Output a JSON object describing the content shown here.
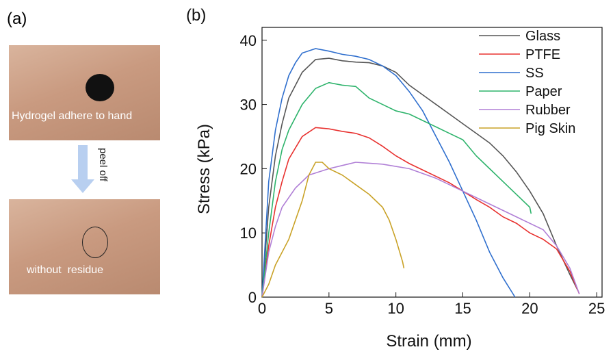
{
  "panel_a": {
    "label": "(a)",
    "top_caption": "Hydrogel adhere to hand",
    "arrow_label": "peel off",
    "bottom_caption": "without  residue"
  },
  "chart_data": {
    "type": "line",
    "panel_label": "(b)",
    "x_label": "Strain (mm)",
    "y_label": "Stress (kPa)",
    "xlim": [
      0,
      25.4
    ],
    "ylim": [
      0,
      42
    ],
    "xticks": [
      0,
      5,
      10,
      15,
      20,
      25
    ],
    "yticks": [
      0,
      10,
      20,
      30,
      40
    ],
    "legend": "top-right",
    "series": [
      {
        "name": "Glass",
        "color": "#555555",
        "x": [
          0,
          0.5,
          1,
          1.5,
          2,
          3,
          4,
          5,
          6,
          7,
          8,
          9,
          10,
          11,
          12,
          13,
          14,
          15,
          16,
          17,
          18,
          19,
          20,
          21,
          22,
          23,
          23.6
        ],
        "values": [
          0,
          14,
          22,
          27,
          31,
          35,
          37,
          37.2,
          36.8,
          36.6,
          36.5,
          36,
          35,
          33,
          31.5,
          30,
          28.5,
          27,
          25.5,
          24,
          22,
          19.5,
          16.5,
          13,
          8,
          3.5,
          1
        ]
      },
      {
        "name": "PTFE",
        "color": "#e8312f",
        "x": [
          0,
          0.5,
          1,
          1.5,
          2,
          3,
          4,
          5,
          6,
          7,
          8,
          9,
          10,
          11,
          12,
          13,
          14,
          15,
          16,
          17,
          18,
          19,
          20,
          21,
          22,
          23,
          23.7
        ],
        "values": [
          0,
          8,
          14,
          18,
          21.5,
          25,
          26.4,
          26.2,
          25.8,
          25.5,
          24.8,
          23.5,
          22,
          20.8,
          19.8,
          18.8,
          17.8,
          16.5,
          15.2,
          14,
          12.5,
          11.5,
          10,
          9,
          7.5,
          4,
          0.5
        ]
      },
      {
        "name": "SS",
        "color": "#2f6fce",
        "x": [
          0,
          0.5,
          1,
          1.5,
          2,
          2.5,
          3,
          4,
          5,
          6,
          7,
          8,
          9,
          10,
          11,
          12,
          13,
          14,
          15,
          16,
          17,
          18,
          18.9
        ],
        "values": [
          0,
          18,
          26,
          31,
          34.5,
          36.5,
          38,
          38.7,
          38.3,
          37.8,
          37.5,
          37,
          36,
          34.5,
          32,
          29,
          25,
          21,
          16.5,
          12,
          7,
          3,
          0
        ]
      },
      {
        "name": "Paper",
        "color": "#2db36b",
        "x": [
          0,
          0.5,
          1,
          1.5,
          2,
          3,
          4,
          5,
          6,
          7,
          8,
          9,
          10,
          11,
          12,
          13,
          14,
          15,
          16,
          17,
          18,
          19,
          20,
          20.1
        ],
        "values": [
          0,
          10,
          18,
          23,
          26,
          30,
          32.5,
          33.4,
          33,
          32.8,
          31,
          30,
          29,
          28.5,
          27.5,
          26.5,
          25.5,
          24.5,
          22,
          20,
          18,
          16,
          14,
          13
        ]
      },
      {
        "name": "Rubber",
        "color": "#b07fd6",
        "x": [
          0,
          0.5,
          1,
          1.5,
          2.5,
          3.5,
          5,
          7,
          9,
          11,
          13,
          15,
          17,
          19,
          21,
          22,
          23,
          23.7
        ],
        "values": [
          0,
          7,
          11,
          14,
          17,
          19,
          20,
          21,
          20.7,
          20,
          18.5,
          16.5,
          14.5,
          12.5,
          10.5,
          8,
          4.5,
          0.5
        ]
      },
      {
        "name": "Pig Skin",
        "color": "#c9a227",
        "x": [
          0,
          0.5,
          1,
          2,
          3,
          3.5,
          4,
          4.5,
          5,
          6,
          7,
          8,
          9,
          9.5,
          10,
          10.5,
          10.6
        ],
        "values": [
          0,
          2,
          5,
          9,
          15,
          19,
          21,
          21,
          20,
          19,
          17.5,
          16,
          14,
          12,
          9,
          5.5,
          4.5
        ]
      }
    ]
  }
}
